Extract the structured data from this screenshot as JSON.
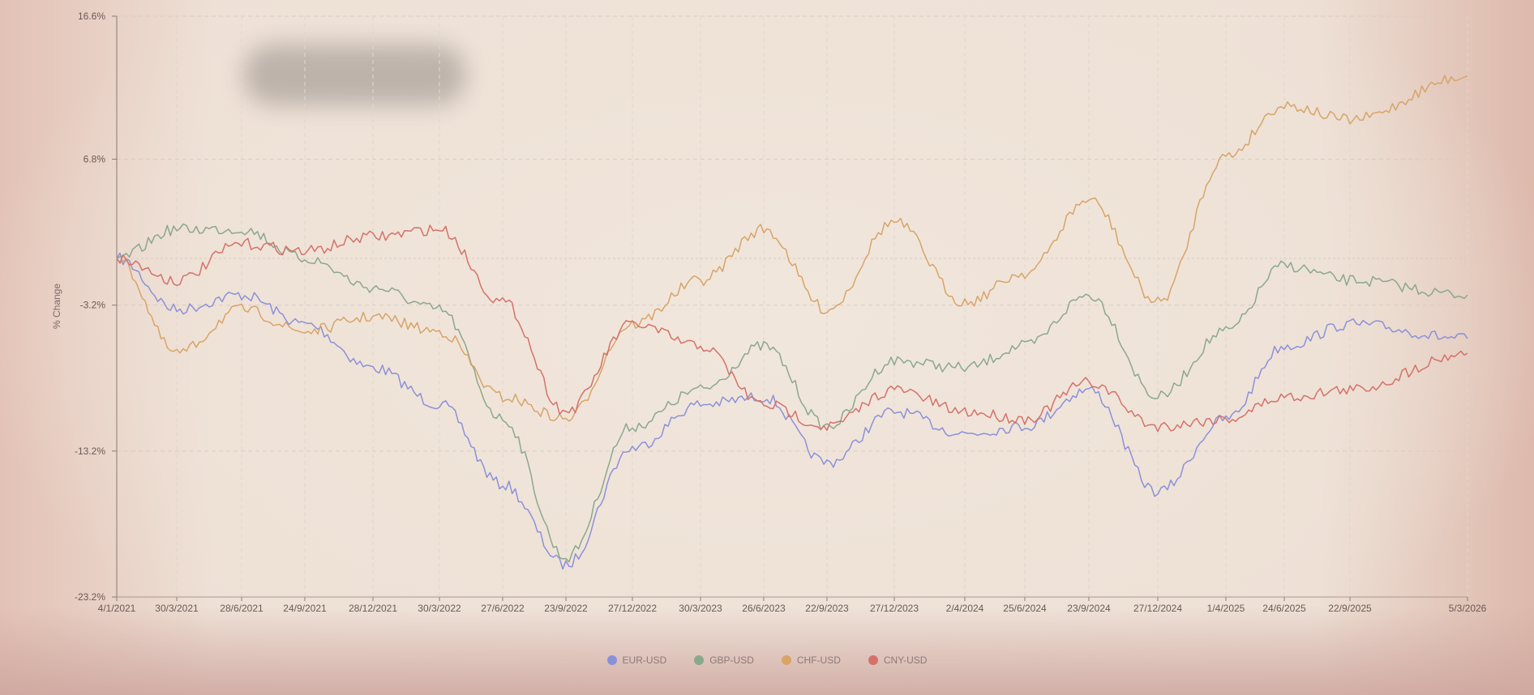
{
  "chart_data": {
    "type": "line",
    "ylabel": "% Change",
    "ylim": [
      -23.2,
      16.6
    ],
    "y_ticks": [
      "16.6%",
      "6.8%",
      "-3.2%",
      "-13.2%",
      "-23.2%"
    ],
    "x_ticks": [
      "4/1/2021",
      "30/3/2021",
      "28/6/2021",
      "24/9/2021",
      "28/12/2021",
      "30/3/2022",
      "27/6/2022",
      "23/9/2022",
      "27/12/2022",
      "30/3/2023",
      "26/6/2023",
      "22/9/2023",
      "27/12/2023",
      "2/4/2024",
      "25/6/2024",
      "23/9/2024",
      "27/12/2024",
      "1/4/2025",
      "24/6/2025",
      "22/9/2025",
      "5/3/2026"
    ],
    "grid": true,
    "legend_position": "bottom-center",
    "series": [
      {
        "name": "EUR-USD",
        "color": "#8b91d8",
        "points": [
          [
            "4/1/2021",
            0.0
          ],
          [
            "30/3/2021",
            -3.5
          ],
          [
            "28/6/2021",
            -2.5
          ],
          [
            "24/9/2021",
            -4.5
          ],
          [
            "28/12/2021",
            -7.5
          ],
          [
            "30/3/2022",
            -10.0
          ],
          [
            "27/6/2022",
            -15.5
          ],
          [
            "23/9/2022",
            -21.0
          ],
          [
            "27/12/2022",
            -13.0
          ],
          [
            "30/3/2023",
            -10.0
          ],
          [
            "26/6/2023",
            -9.5
          ],
          [
            "22/9/2023",
            -14.0
          ],
          [
            "27/12/2023",
            -10.5
          ],
          [
            "2/4/2024",
            -12.0
          ],
          [
            "25/6/2024",
            -11.5
          ],
          [
            "23/9/2024",
            -9.0
          ],
          [
            "27/12/2024",
            -16.0
          ],
          [
            "1/4/2025",
            -11.0
          ],
          [
            "24/6/2025",
            -6.0
          ],
          [
            "22/9/2025",
            -4.5
          ],
          [
            "5/3/2026",
            -5.5
          ]
        ]
      },
      {
        "name": "GBP-USD",
        "color": "#8aa88e",
        "points": [
          [
            "4/1/2021",
            0.0
          ],
          [
            "30/3/2021",
            2.0
          ],
          [
            "28/6/2021",
            2.0
          ],
          [
            "24/9/2021",
            0.0
          ],
          [
            "28/12/2021",
            -2.0
          ],
          [
            "30/3/2022",
            -3.5
          ],
          [
            "27/6/2022",
            -11.0
          ],
          [
            "23/9/2022",
            -20.5
          ],
          [
            "27/12/2022",
            -11.5
          ],
          [
            "30/3/2023",
            -9.0
          ],
          [
            "26/6/2023",
            -6.0
          ],
          [
            "22/9/2023",
            -11.5
          ],
          [
            "27/12/2023",
            -7.0
          ],
          [
            "2/4/2024",
            -7.5
          ],
          [
            "25/6/2024",
            -6.0
          ],
          [
            "23/9/2024",
            -2.5
          ],
          [
            "27/12/2024",
            -9.5
          ],
          [
            "1/4/2025",
            -5.0
          ],
          [
            "24/6/2025",
            -0.5
          ],
          [
            "22/9/2025",
            -1.5
          ],
          [
            "5/3/2026",
            -2.5
          ]
        ]
      },
      {
        "name": "CHF-USD",
        "color": "#d8a468",
        "points": [
          [
            "4/1/2021",
            0.0
          ],
          [
            "30/3/2021",
            -6.5
          ],
          [
            "28/6/2021",
            -3.5
          ],
          [
            "24/9/2021",
            -5.0
          ],
          [
            "28/12/2021",
            -4.0
          ],
          [
            "30/3/2022",
            -5.0
          ],
          [
            "27/6/2022",
            -9.5
          ],
          [
            "23/9/2022",
            -11.0
          ],
          [
            "27/12/2022",
            -4.5
          ],
          [
            "30/3/2023",
            -1.5
          ],
          [
            "26/6/2023",
            2.0
          ],
          [
            "22/9/2023",
            -3.5
          ],
          [
            "27/12/2023",
            2.5
          ],
          [
            "2/4/2024",
            -3.0
          ],
          [
            "25/6/2024",
            -1.0
          ],
          [
            "23/9/2024",
            4.0
          ],
          [
            "27/12/2024",
            -3.0
          ],
          [
            "1/4/2025",
            7.0
          ],
          [
            "24/6/2025",
            10.5
          ],
          [
            "22/9/2025",
            9.5
          ],
          [
            "5/3/2026",
            12.5
          ]
        ]
      },
      {
        "name": "CNY-USD",
        "color": "#d4726a",
        "points": [
          [
            "4/1/2021",
            0.0
          ],
          [
            "30/3/2021",
            -1.5
          ],
          [
            "28/6/2021",
            1.0
          ],
          [
            "24/9/2021",
            0.5
          ],
          [
            "28/12/2021",
            1.5
          ],
          [
            "30/3/2022",
            2.0
          ],
          [
            "27/6/2022",
            -3.0
          ],
          [
            "23/9/2022",
            -10.5
          ],
          [
            "27/12/2022",
            -4.5
          ],
          [
            "30/3/2023",
            -6.0
          ],
          [
            "26/6/2023",
            -10.0
          ],
          [
            "22/9/2023",
            -11.5
          ],
          [
            "27/12/2023",
            -9.0
          ],
          [
            "2/4/2024",
            -10.5
          ],
          [
            "25/6/2024",
            -11.0
          ],
          [
            "23/9/2024",
            -8.5
          ],
          [
            "27/12/2024",
            -11.5
          ],
          [
            "1/4/2025",
            -11.0
          ],
          [
            "24/6/2025",
            -9.5
          ],
          [
            "22/9/2025",
            -9.0
          ],
          [
            "5/3/2026",
            -6.5
          ]
        ]
      }
    ]
  }
}
